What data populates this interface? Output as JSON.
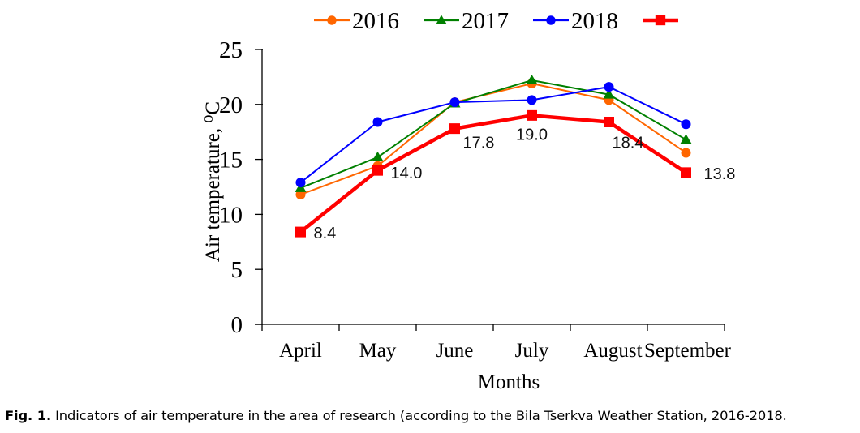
{
  "chart_data": {
    "type": "line",
    "title": "",
    "xlabel": "Months",
    "ylabel": "Air temperature, ⁰C",
    "categories": [
      "April",
      "May",
      "June",
      "July",
      "August",
      "September"
    ],
    "ylim": [
      0,
      25
    ],
    "yticks": [
      0,
      5,
      10,
      15,
      20,
      25
    ],
    "grid": false,
    "legend_position": "top-center",
    "series": [
      {
        "name": "2016",
        "color": "#ff6600",
        "marker": "circle",
        "values": [
          11.8,
          14.4,
          20.2,
          21.9,
          20.4,
          15.6
        ],
        "show_labels": false
      },
      {
        "name": "2017",
        "color": "#008000",
        "marker": "triangle",
        "values": [
          12.4,
          15.2,
          20.1,
          22.2,
          20.9,
          16.8
        ],
        "show_labels": false
      },
      {
        "name": "2018",
        "color": "#0000ff",
        "marker": "circle",
        "values": [
          12.9,
          18.4,
          20.2,
          20.4,
          21.6,
          18.2
        ],
        "show_labels": false
      },
      {
        "name": "",
        "color": "#ff0000",
        "marker": "square",
        "values": [
          8.4,
          14.0,
          17.8,
          19.0,
          18.4,
          13.8
        ],
        "show_labels": true,
        "labels": [
          "8.4",
          "14.0",
          "17.8",
          "19.0",
          "18.4",
          "13.8"
        ]
      }
    ]
  },
  "caption": {
    "prefix": "Fig. 1.",
    "text": " Indicators of air temperature in the area of research (according to the Bila Tserkva Weather Station, 2016-2018."
  }
}
